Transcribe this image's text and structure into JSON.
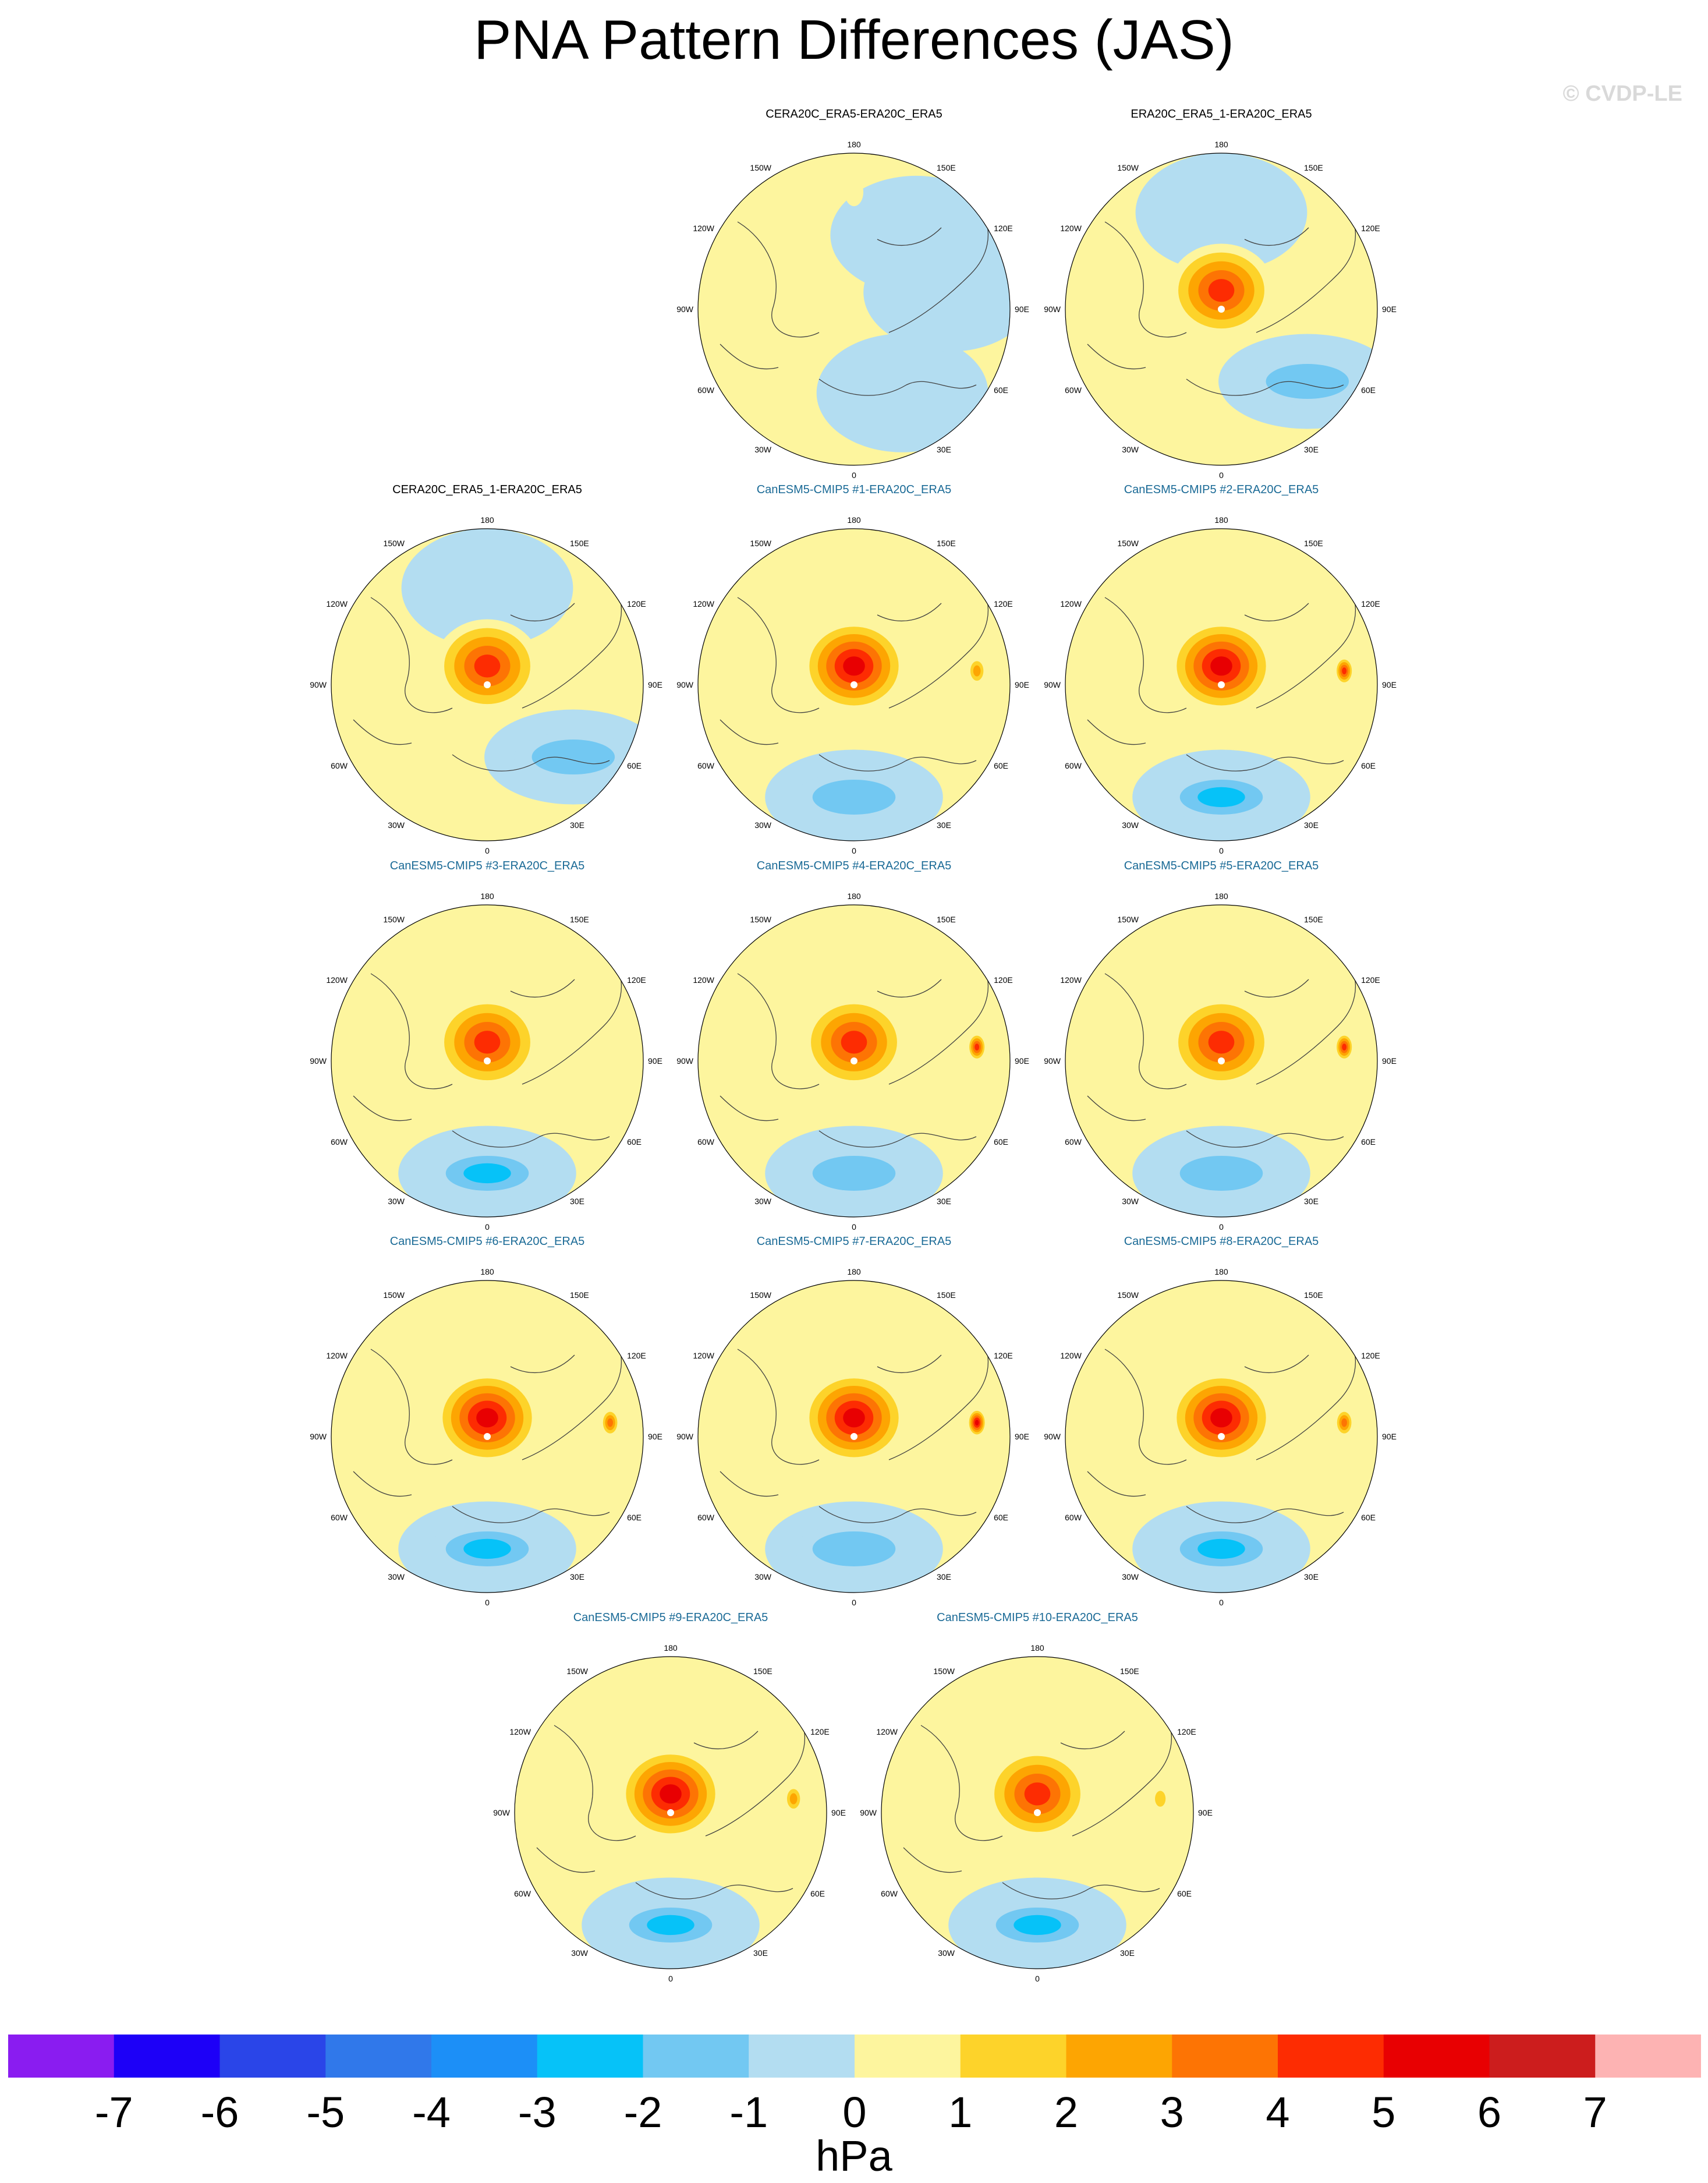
{
  "figure": {
    "title": "PNA Pattern Differences (JAS)",
    "watermark": "© CVDP-LE",
    "units": "hPa"
  },
  "colors": {
    "levels": [
      "#8a1cf0",
      "#1d00f7",
      "#2a45e8",
      "#3078ea",
      "#1c8ff7",
      "#06c2f8",
      "#72c8f2",
      "#b3ddf1",
      "#fdf59e",
      "#fdd32a",
      "#fda502",
      "#fd7404",
      "#fd2c02",
      "#e80002",
      "#cc1d1d",
      "#fdb3b3"
    ],
    "coast": "#404040",
    "model_title": "#1a6a96",
    "obs_title": "#000000"
  },
  "colorbar": {
    "tick_labels": [
      "-7",
      "-6",
      "-5",
      "-4",
      "-3",
      "-2",
      "-1",
      "0",
      "1",
      "2",
      "3",
      "4",
      "5",
      "6",
      "7"
    ]
  },
  "map_labels": {
    "top": "180",
    "bottom": "0",
    "left": "90W",
    "right": "90E",
    "ul_outer": "150W",
    "ul_inner": "120W",
    "ur_outer": "150E",
    "ur_inner": "120E",
    "ll_inner": "60W",
    "ll_outer": "30W",
    "lr_inner": "60E",
    "lr_outer": "30E"
  },
  "chart_data": [
    {
      "type": "heatmap",
      "projection": "polar-stereographic",
      "hemisphere": "north",
      "title": "CERA20C_ERA5-ERA20C_ERA5",
      "levels": [
        -7,
        -6,
        -5,
        -4,
        -3,
        -2,
        -1,
        0,
        1,
        2,
        3,
        4,
        5,
        6,
        7
      ],
      "units": "hPa",
      "features": [
        {
          "lon": -150,
          "value": -0.5
        },
        {
          "lon": -80,
          "value": -0.5
        },
        {
          "lon": -40,
          "value": -0.5
        },
        {
          "lon": 0,
          "value": 0.5
        }
      ]
    },
    {
      "type": "heatmap",
      "projection": "polar-stereographic",
      "hemisphere": "north",
      "title": "ERA20C_ERA5_1-ERA20C_ERA5",
      "levels": [
        -7,
        -6,
        -5,
        -4,
        -3,
        -2,
        -1,
        0,
        1,
        2,
        3,
        4,
        5,
        6,
        7
      ],
      "units": "hPa",
      "features": [
        {
          "lon": -130,
          "value": -1.5
        },
        {
          "lon": 0,
          "value": -0.5
        },
        {
          "lon": 120,
          "value": 5
        }
      ]
    },
    {
      "type": "heatmap",
      "projection": "polar-stereographic",
      "hemisphere": "north",
      "title": "CERA20C_ERA5_1-ERA20C_ERA5",
      "levels": [
        -7,
        -6,
        -5,
        -4,
        -3,
        -2,
        -1,
        0,
        1,
        2,
        3,
        4,
        5,
        6,
        7
      ],
      "units": "hPa",
      "features": [
        {
          "lon": -130,
          "value": -1.5
        },
        {
          "lon": 0,
          "value": -0.5
        },
        {
          "lon": 120,
          "value": 5
        }
      ]
    },
    {
      "type": "heatmap",
      "projection": "polar-stereographic",
      "hemisphere": "north",
      "title": "CanESM5-CMIP5 #1-ERA20C_ERA5",
      "levels": [
        -7,
        -6,
        -5,
        -4,
        -3,
        -2,
        -1,
        0,
        1,
        2,
        3,
        4,
        5,
        6,
        7
      ],
      "units": "hPa",
      "features": [
        {
          "lon": 180,
          "value": -1.5
        },
        {
          "lon": 90,
          "value": 5.5
        },
        {
          "lon": 80,
          "value": 2.5
        }
      ]
    },
    {
      "type": "heatmap",
      "projection": "polar-stereographic",
      "hemisphere": "north",
      "title": "CanESM5-CMIP5 #2-ERA20C_ERA5",
      "levels": [
        -7,
        -6,
        -5,
        -4,
        -3,
        -2,
        -1,
        0,
        1,
        2,
        3,
        4,
        5,
        6,
        7
      ],
      "units": "hPa",
      "features": [
        {
          "lon": 180,
          "value": -2.5
        },
        {
          "lon": 90,
          "value": 5.5
        },
        {
          "lon": 80,
          "value": 4.5
        }
      ]
    },
    {
      "type": "heatmap",
      "projection": "polar-stereographic",
      "hemisphere": "north",
      "title": "CanESM5-CMIP5 #3-ERA20C_ERA5",
      "levels": [
        -7,
        -6,
        -5,
        -4,
        -3,
        -2,
        -1,
        0,
        1,
        2,
        3,
        4,
        5,
        6,
        7
      ],
      "units": "hPa",
      "features": [
        {
          "lon": 180,
          "value": -2.5
        },
        {
          "lon": 90,
          "value": 4.5
        }
      ]
    },
    {
      "type": "heatmap",
      "projection": "polar-stereographic",
      "hemisphere": "north",
      "title": "CanESM5-CMIP5 #4-ERA20C_ERA5",
      "levels": [
        -7,
        -6,
        -5,
        -4,
        -3,
        -2,
        -1,
        0,
        1,
        2,
        3,
        4,
        5,
        6,
        7
      ],
      "units": "hPa",
      "features": [
        {
          "lon": 180,
          "value": -1.5
        },
        {
          "lon": 90,
          "value": 4.5
        },
        {
          "lon": 80,
          "value": 4.5
        }
      ]
    },
    {
      "type": "heatmap",
      "projection": "polar-stereographic",
      "hemisphere": "north",
      "title": "CanESM5-CMIP5 #5-ERA20C_ERA5",
      "levels": [
        -7,
        -6,
        -5,
        -4,
        -3,
        -2,
        -1,
        0,
        1,
        2,
        3,
        4,
        5,
        6,
        7
      ],
      "units": "hPa",
      "features": [
        {
          "lon": 180,
          "value": -1.5
        },
        {
          "lon": 90,
          "value": 4.5
        },
        {
          "lon": 80,
          "value": 4.5
        }
      ]
    },
    {
      "type": "heatmap",
      "projection": "polar-stereographic",
      "hemisphere": "north",
      "title": "CanESM5-CMIP5 #6-ERA20C_ERA5",
      "levels": [
        -7,
        -6,
        -5,
        -4,
        -3,
        -2,
        -1,
        0,
        1,
        2,
        3,
        4,
        5,
        6,
        7
      ],
      "units": "hPa",
      "features": [
        {
          "lon": 180,
          "value": -2.5
        },
        {
          "lon": 90,
          "value": 5.5
        },
        {
          "lon": 80,
          "value": 3.5
        }
      ]
    },
    {
      "type": "heatmap",
      "projection": "polar-stereographic",
      "hemisphere": "north",
      "title": "CanESM5-CMIP5 #7-ERA20C_ERA5",
      "levels": [
        -7,
        -6,
        -5,
        -4,
        -3,
        -2,
        -1,
        0,
        1,
        2,
        3,
        4,
        5,
        6,
        7
      ],
      "units": "hPa",
      "features": [
        {
          "lon": 180,
          "value": -1.5
        },
        {
          "lon": 90,
          "value": 5.5
        },
        {
          "lon": 80,
          "value": 5.5
        }
      ]
    },
    {
      "type": "heatmap",
      "projection": "polar-stereographic",
      "hemisphere": "north",
      "title": "CanESM5-CMIP5 #8-ERA20C_ERA5",
      "levels": [
        -7,
        -6,
        -5,
        -4,
        -3,
        -2,
        -1,
        0,
        1,
        2,
        3,
        4,
        5,
        6,
        7
      ],
      "units": "hPa",
      "features": [
        {
          "lon": 180,
          "value": -2.5
        },
        {
          "lon": 90,
          "value": 5.5
        },
        {
          "lon": 80,
          "value": 3.5
        }
      ]
    },
    {
      "type": "heatmap",
      "projection": "polar-stereographic",
      "hemisphere": "north",
      "title": "CanESM5-CMIP5 #9-ERA20C_ERA5",
      "levels": [
        -7,
        -6,
        -5,
        -4,
        -3,
        -2,
        -1,
        0,
        1,
        2,
        3,
        4,
        5,
        6,
        7
      ],
      "units": "hPa",
      "features": [
        {
          "lon": 180,
          "value": -2.5
        },
        {
          "lon": 90,
          "value": 5.5
        },
        {
          "lon": 80,
          "value": 2.5
        }
      ]
    },
    {
      "type": "heatmap",
      "projection": "polar-stereographic",
      "hemisphere": "north",
      "title": "CanESM5-CMIP5 #10-ERA20C_ERA5",
      "levels": [
        -7,
        -6,
        -5,
        -4,
        -3,
        -2,
        -1,
        0,
        1,
        2,
        3,
        4,
        5,
        6,
        7
      ],
      "units": "hPa",
      "features": [
        {
          "lon": 180,
          "value": -2.5
        },
        {
          "lon": 90,
          "value": 4.5
        },
        {
          "lon": 80,
          "value": 1.5
        }
      ]
    }
  ]
}
